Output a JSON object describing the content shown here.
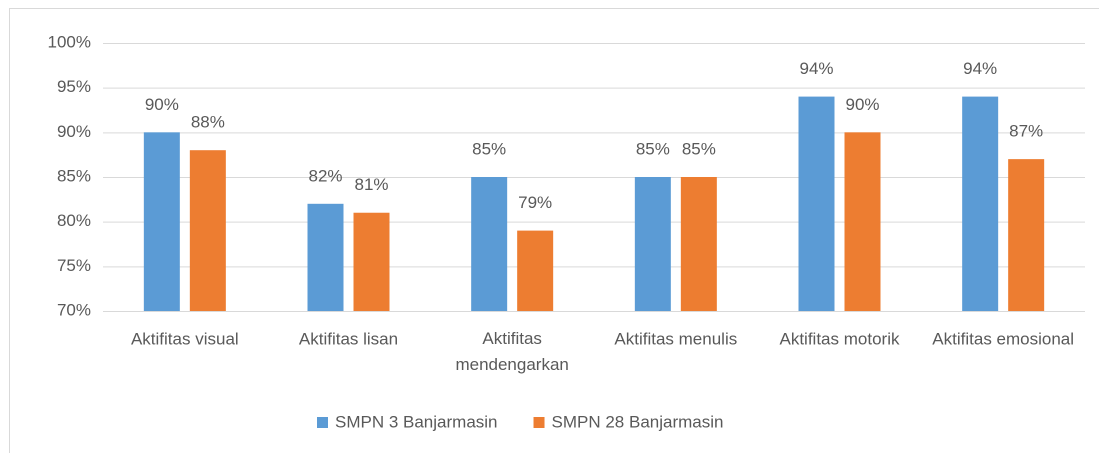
{
  "chart_data": {
    "type": "bar",
    "categories": [
      "Aktifitas visual",
      "Aktifitas lisan",
      "Aktifitas mendengarkan",
      "Aktifitas menulis",
      "Aktifitas motorik",
      "Aktifitas emosional"
    ],
    "series": [
      {
        "name": "SMPN 3 Banjarmasin",
        "color": "#5b9bd5",
        "values": [
          90,
          82,
          85,
          85,
          94,
          94
        ],
        "value_labels": [
          "90%",
          "82%",
          "85%",
          "85%",
          "94%",
          "94%"
        ]
      },
      {
        "name": "SMPN 28 Banjarmasin",
        "color": "#ed7d31",
        "values": [
          88,
          81,
          79,
          85,
          90,
          87
        ],
        "value_labels": [
          "88%",
          "81%",
          "79%",
          "85%",
          "90%",
          "87%"
        ]
      }
    ],
    "ylim": [
      70,
      100
    ],
    "yticks": [
      {
        "value": 70,
        "label": "70%"
      },
      {
        "value": 75,
        "label": "75%"
      },
      {
        "value": 80,
        "label": "80%"
      },
      {
        "value": 85,
        "label": "85%"
      },
      {
        "value": 90,
        "label": "90%"
      },
      {
        "value": 95,
        "label": "95%"
      },
      {
        "value": 100,
        "label": "100%"
      }
    ],
    "grid": true,
    "legend": "bottom"
  }
}
